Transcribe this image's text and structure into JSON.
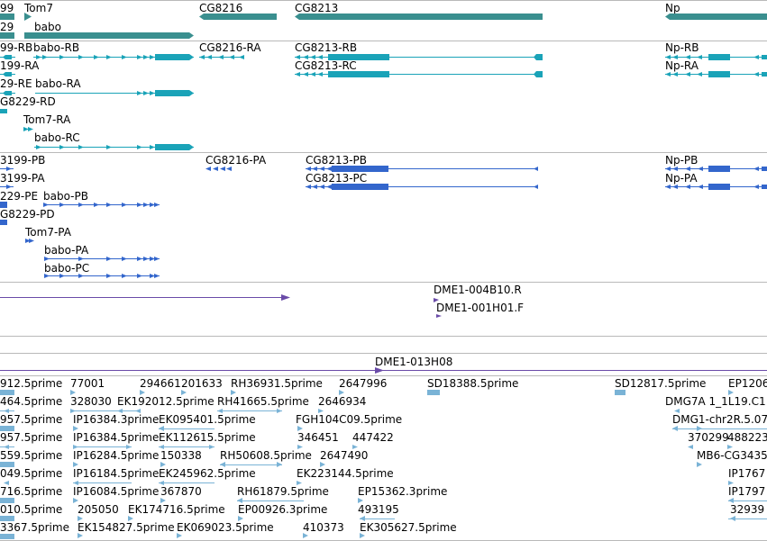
{
  "colors": {
    "gene": "#3a8f8f",
    "transcript": "#1aa3b8",
    "protein": "#3366cc",
    "clone": "#6a4ba8",
    "est": "#7ab3d6",
    "separator": "#b9b9b9"
  },
  "tracks": {
    "genes": {
      "features": [
        {
          "label": "99"
        },
        {
          "label": "Tom7"
        },
        {
          "label": "CG8216"
        },
        {
          "label": "CG8213"
        },
        {
          "label": "Np"
        },
        {
          "label": "29"
        },
        {
          "label": "babo"
        }
      ]
    },
    "transcripts": {
      "features": [
        {
          "label": "99-RB"
        },
        {
          "label": "babo-RB"
        },
        {
          "label": "CG8216-RA"
        },
        {
          "label": "CG8213-RB"
        },
        {
          "label": "Np-RB"
        },
        {
          "label": "199-RA"
        },
        {
          "label": "CG8213-RC"
        },
        {
          "label": "Np-RA"
        },
        {
          "label": "29-RE"
        },
        {
          "label": "babo-RA"
        },
        {
          "label": "G8229-RD"
        },
        {
          "label": "Tom7-RA"
        },
        {
          "label": "babo-RC"
        }
      ]
    },
    "proteins": {
      "features": [
        {
          "label": "3199-PB"
        },
        {
          "label": "CG8216-PA"
        },
        {
          "label": "CG8213-PB"
        },
        {
          "label": "Np-PB"
        },
        {
          "label": "3199-PA"
        },
        {
          "label": "CG8213-PC"
        },
        {
          "label": "Np-PA"
        },
        {
          "label": "229-PE"
        },
        {
          "label": "babo-PB"
        },
        {
          "label": "G8229-PD"
        },
        {
          "label": "Tom7-PA"
        },
        {
          "label": "babo-PA"
        },
        {
          "label": "babo-PC"
        }
      ]
    },
    "clones": {
      "features": [
        {
          "label": "DME1-004B10.R"
        },
        {
          "label": "DME1-001H01.F"
        },
        {
          "label": "DME1-013H08"
        }
      ]
    },
    "ests": {
      "rows": [
        [
          "912.5prime",
          "77001",
          "294661",
          "201633",
          "RH36931.5prime",
          "2647996",
          "SD18388.5prime",
          "SD12817.5prime",
          "EP1206"
        ],
        [
          "464.5prime",
          "328030",
          "EK192012.5prime",
          "RH41665.5prime",
          "2646934",
          "DMG7A 1_1L19.C1"
        ],
        [
          "957.5prime",
          "IP16384.3prime",
          "EK095401.5prime",
          "FGH104C09.5prime",
          "DMG1-chr2R.5.07"
        ],
        [
          "957.5prime",
          "IP16384.5prime",
          "EK112615.5prime",
          "346451",
          "447422",
          "370299",
          "488223"
        ],
        [
          "559.5prime",
          "IP16284.5prime",
          "150338",
          "RH50608.5prime",
          "2647490",
          "MB6-CG3435"
        ],
        [
          "049.5prime",
          "IP16184.5prime",
          "EK245962.5prime",
          "EK223144.5prime",
          "IP1767"
        ],
        [
          "716.5prime",
          "IP16084.5prime",
          "367870",
          "RH61879.5prime",
          "EP15362.3prime",
          "IP1797"
        ],
        [
          "010.5prime",
          "205050",
          "EK174716.5prime",
          "EP00926.3prime",
          "493195",
          "32939"
        ],
        [
          "3367.5prime",
          "EK154827.5prime",
          "EK069023.5prime",
          "410373",
          "EK305627.5prime"
        ]
      ]
    }
  }
}
